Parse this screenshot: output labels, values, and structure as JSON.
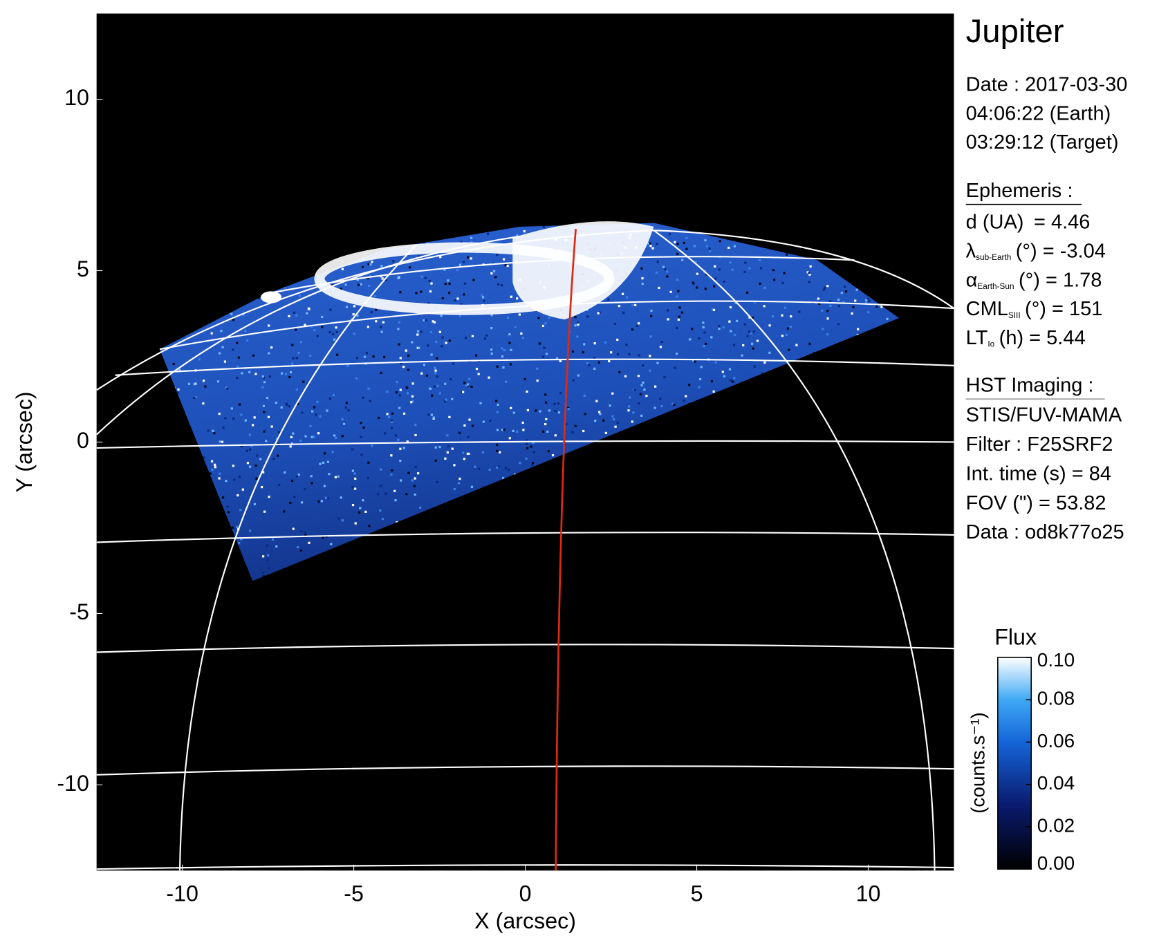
{
  "chart_data": {
    "type": "image",
    "title": "Jupiter",
    "xlabel": "X (arcsec)",
    "ylabel": "Y (arcsec)",
    "xlim": [
      -12.5,
      12.5
    ],
    "ylim": [
      -12.5,
      12.5
    ],
    "xticks": [
      -10,
      -5,
      0,
      5,
      10
    ],
    "yticks": [
      -10,
      -5,
      0,
      5,
      10
    ],
    "date": [
      "Date : 2017-03-30",
      "04:06:22 (Earth)",
      "03:29:12 (Target)"
    ],
    "ephemeris": {
      "heading": "Ephemeris :",
      "items": [
        {
          "symbol": "d (UA)",
          "text": "   = 4.46"
        },
        {
          "symbol": "λ",
          "sub": "sub-Earth",
          "text": "(°) = -3.04"
        },
        {
          "symbol": "α",
          "sub": "Earth-Sun",
          "text": "(°) = 1.78"
        },
        {
          "symbol": "CML",
          "sub": "SIII",
          "text": "(°) = 151"
        },
        {
          "symbol": "LT",
          "sub": "Io",
          "text": "(h) = 5.44"
        }
      ]
    },
    "imaging": {
      "heading": "HST Imaging :",
      "lines": [
        "STIS/FUV-MAMA",
        "Filter : F25SRF2",
        "Int. time (s) = 84",
        "FOV (\") = 53.82",
        "Data : od8k77o25"
      ]
    },
    "colorbar": {
      "title": "Flux",
      "label": "(counts.s⁻¹)",
      "clim": [
        0,
        0.1
      ],
      "ticks": [
        {
          "value": 0,
          "label": "0.00"
        },
        {
          "value": 0.02,
          "label": "0.02"
        },
        {
          "value": 0.04,
          "label": "0.04"
        },
        {
          "value": 0.06,
          "label": "0.06"
        },
        {
          "value": 0.08,
          "label": "0.08"
        },
        {
          "value": 0.1,
          "label": "0.10"
        }
      ]
    }
  }
}
